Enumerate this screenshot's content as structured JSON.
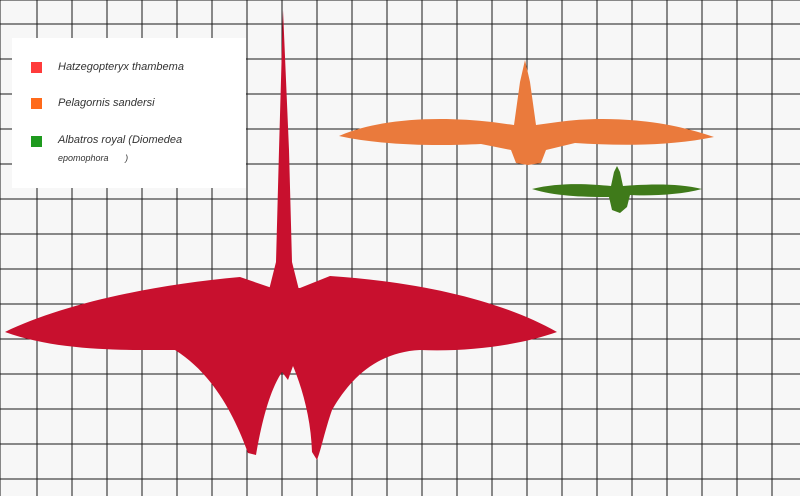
{
  "legend": {
    "items": [
      {
        "label": "Hatzegopteryx thambema",
        "color": "#ff3b3b"
      },
      {
        "label": "Pelagornis sandersi",
        "color": "#ff6a1a"
      },
      {
        "label": "Albatros royal (Diomedea",
        "label_cont": "epomophora",
        "label_end": ")",
        "color": "#1e9a1e"
      }
    ]
  },
  "silhouettes": {
    "hatzegopteryx": {
      "color": "#c8102e",
      "icon": "pterosaur-silhouette"
    },
    "pelagornis": {
      "color": "#ea7a3c",
      "icon": "bird-silhouette"
    },
    "albatross": {
      "color": "#3f7a1a",
      "icon": "bird-silhouette"
    }
  },
  "grid": {
    "line_color": "#1a1a1a"
  }
}
